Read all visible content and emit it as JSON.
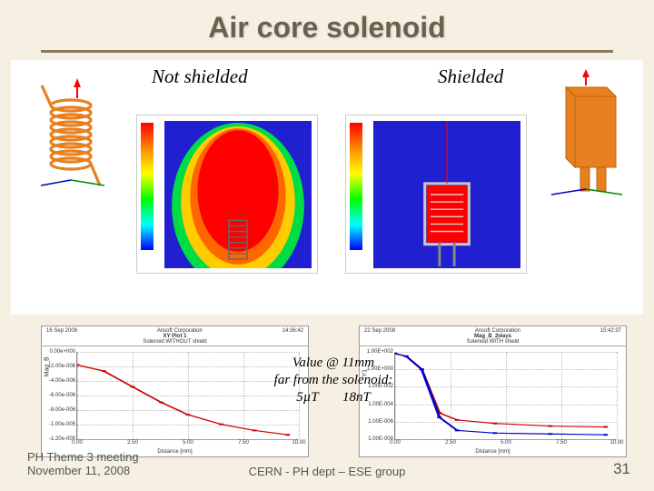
{
  "title": "Air core solenoid",
  "labels": {
    "left": "Not shielded",
    "right": "Shielded"
  },
  "coil": {
    "color": "#e88020",
    "arrow_color": "#ff0000",
    "turns": 10
  },
  "shield_box": {
    "color": "#e88020"
  },
  "fieldmaps": {
    "left": {
      "bg": "#2020d0",
      "shape": "plume",
      "core_color": "#ff0000",
      "mid_color": "#ffcc00",
      "edge_color": "#00dd44"
    },
    "right": {
      "bg": "#2020d0",
      "shape": "confined",
      "core_color": "#ff0000",
      "box_color": "#b0b0b0"
    }
  },
  "graphs": {
    "left": {
      "date": "16 Sep 2008",
      "header_mid": "Ansoft Corporation",
      "header_right": "14:36:42",
      "subtitle1": "XY Plot 1",
      "subtitle2": "Solenoid WITHOUT shield",
      "ylabel": "Mag_B",
      "xlabel": "Distance [mm]",
      "xticks": [
        "0.00",
        "2.50",
        "5.00",
        "7.50",
        "10.00"
      ],
      "yticks": [
        "0.00e+000",
        "-2.00e-006",
        "-4.00e-006",
        "-6.00e-006",
        "-8.00e-006",
        "-1.00e-005",
        "-1.20e-005"
      ],
      "series_color": "#cc0000",
      "points": [
        [
          0,
          0.15
        ],
        [
          0.12,
          0.22
        ],
        [
          0.25,
          0.4
        ],
        [
          0.38,
          0.58
        ],
        [
          0.5,
          0.72
        ],
        [
          0.65,
          0.83
        ],
        [
          0.8,
          0.9
        ],
        [
          0.95,
          0.95
        ]
      ]
    },
    "right": {
      "date": "22 Sep 2008",
      "header_mid": "Ansoft Corporation",
      "header_right": "15:42:37",
      "subtitle1": "Mag_B_2ways",
      "subtitle2": "Solenoid WITH shield",
      "ylabel": "Y1",
      "xlabel": "Distance [mm]",
      "xticks": [
        "0.00",
        "2.50",
        "5.00",
        "7.50",
        "10.00"
      ],
      "yticks": [
        "1.00E+002",
        "1.00E+000",
        "1.00E-002",
        "1.00E-004",
        "1.00E-006",
        "1.00E-008"
      ],
      "series_color": "#cc0000",
      "series2_color": "#0000cc",
      "points": [
        [
          0,
          0.02
        ],
        [
          0.05,
          0.05
        ],
        [
          0.12,
          0.2
        ],
        [
          0.2,
          0.7
        ],
        [
          0.28,
          0.78
        ],
        [
          0.45,
          0.82
        ],
        [
          0.7,
          0.85
        ],
        [
          0.95,
          0.86
        ]
      ],
      "points2": [
        [
          0,
          0.02
        ],
        [
          0.05,
          0.05
        ],
        [
          0.12,
          0.2
        ],
        [
          0.2,
          0.75
        ],
        [
          0.28,
          0.9
        ],
        [
          0.45,
          0.93
        ],
        [
          0.7,
          0.94
        ],
        [
          0.95,
          0.95
        ]
      ]
    }
  },
  "center_caption": {
    "line1": "Value @ 11mm",
    "line2": "far from the solenoid:",
    "val1": "5µT",
    "val2": "18nT"
  },
  "footer": {
    "left_line1": "PH Theme 3 meeting",
    "left_line2": "November 11, 2008",
    "center": "CERN - PH dept – ESE group",
    "page": "31"
  }
}
